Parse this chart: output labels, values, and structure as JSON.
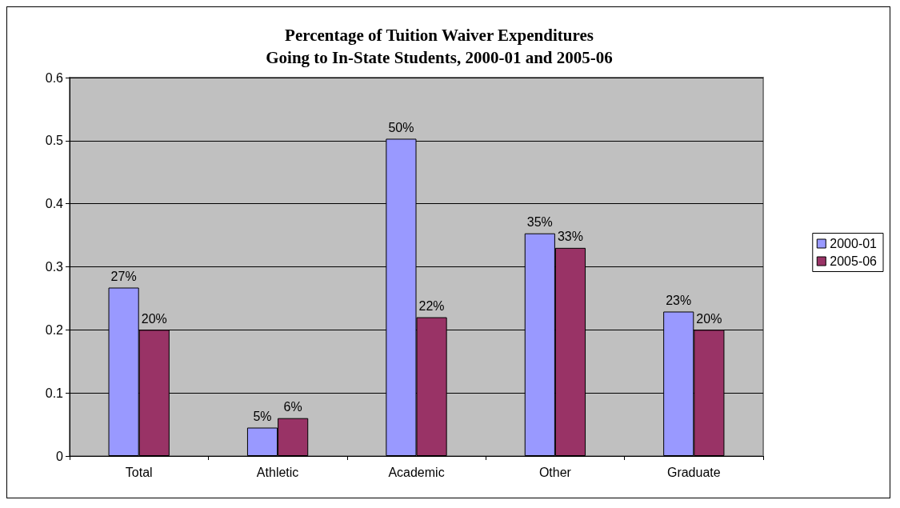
{
  "chart_data": {
    "type": "bar",
    "title": "Percentage of Tuition Waiver Expenditures\nGoing to In-State Students, 2000-01 and 2005-06",
    "categories": [
      "Total",
      "Athletic",
      "Academic",
      "Other",
      "Graduate"
    ],
    "series": [
      {
        "name": "2000-01",
        "color": "#9999ff",
        "values": [
          0.267,
          0.045,
          0.503,
          0.353,
          0.229
        ],
        "value_labels": [
          "27%",
          "5%",
          "50%",
          "35%",
          "23%"
        ]
      },
      {
        "name": "2005-06",
        "color": "#993366",
        "values": [
          0.2,
          0.06,
          0.22,
          0.33,
          0.2
        ],
        "value_labels": [
          "20%",
          "6%",
          "22%",
          "33%",
          "20%"
        ]
      }
    ],
    "ylim": [
      0,
      0.6
    ],
    "yticks": [
      0,
      0.1,
      0.2,
      0.3,
      0.4,
      0.5,
      0.6
    ],
    "grid": "y",
    "legend": "right"
  }
}
